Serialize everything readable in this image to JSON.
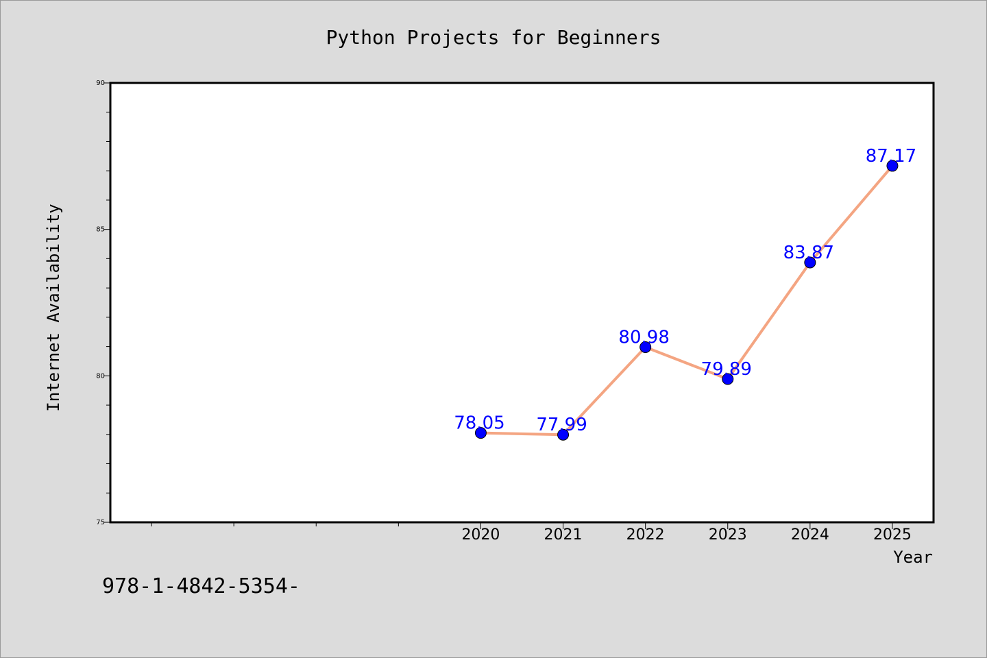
{
  "chart_data": {
    "type": "line",
    "title": "Python Projects for Beginners",
    "xlabel": "Year",
    "ylabel": "Internet Availability",
    "x": [
      2020,
      2021,
      2022,
      2023,
      2024,
      2025
    ],
    "x_tick_labels": [
      "2020",
      "2021",
      "2022",
      "2023",
      "2024",
      "2025"
    ],
    "values": [
      78.05,
      77.99,
      80.98,
      79.89,
      83.87,
      87.17
    ],
    "data_labels": [
      "78.05",
      "77.99",
      "80.98",
      "79.89",
      "83.87",
      "87.17"
    ],
    "xlim": [
      2015.5,
      2025.5
    ],
    "ylim": [
      75,
      90
    ],
    "y_ticks": [
      75,
      80,
      85,
      90
    ],
    "y_tick_labels": [
      "75",
      "80",
      "85",
      "90"
    ],
    "grid": false,
    "line_color": "#f4a582",
    "marker_color": "#0000ff",
    "label_color": "#0000ff",
    "background_color": "#dcdcdc",
    "plot_background": "#ffffff"
  },
  "footer_text": "978-1-4842-5354-"
}
